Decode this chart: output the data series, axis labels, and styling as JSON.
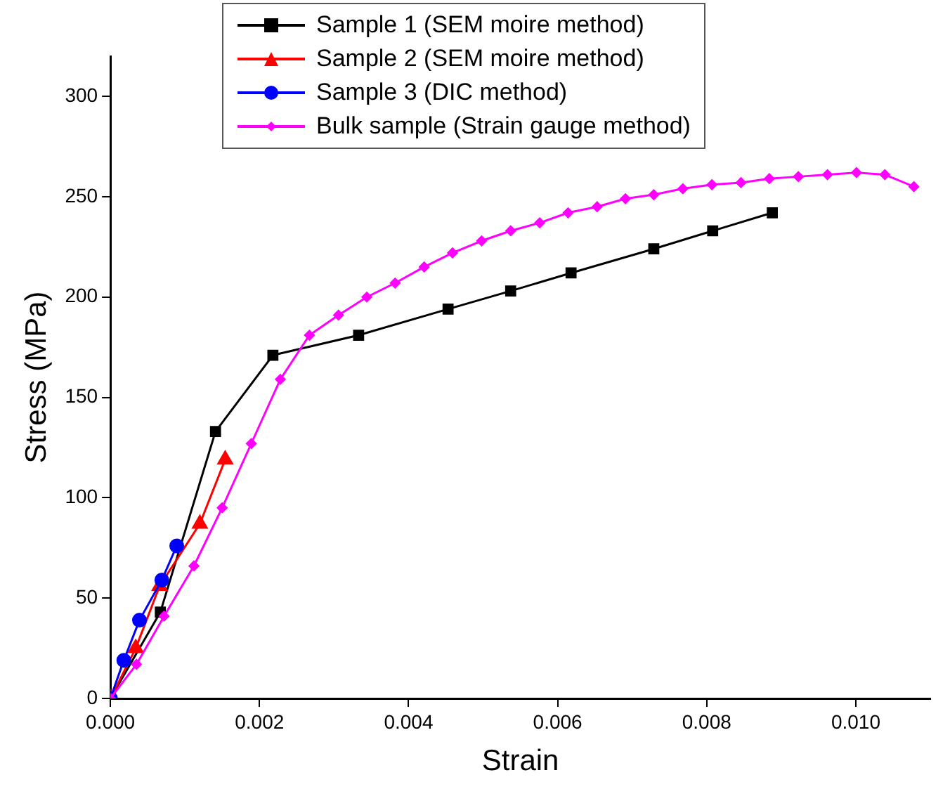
{
  "chart_data": {
    "type": "line",
    "xlabel": "Strain",
    "ylabel": "Stress (MPa)",
    "xlim": [
      0,
      0.011
    ],
    "xticks": [
      {
        "value": 0,
        "label": "0.000"
      },
      {
        "value": 0.002,
        "label": "0.002"
      },
      {
        "value": 0.004,
        "label": "0.004"
      },
      {
        "value": 0.006,
        "label": "0.006"
      },
      {
        "value": 0.008,
        "label": "0.008"
      },
      {
        "value": 0.01,
        "label": "0.010"
      }
    ],
    "ylim": [
      0,
      320
    ],
    "yticks": [
      0,
      50,
      100,
      150,
      200,
      250,
      300
    ],
    "grid": false,
    "legend": "top",
    "line_style": "solid",
    "series": [
      {
        "name": "Sample 1 (SEM moire method)",
        "color": "#000000",
        "marker": "square",
        "x": [
          0,
          0.00067,
          0.00141,
          0.00218,
          0.00333,
          0.00453,
          0.00537,
          0.00618,
          0.00729,
          0.00808,
          0.00888
        ],
        "values": [
          0,
          43,
          133,
          171,
          181,
          194,
          203,
          212,
          224,
          233,
          242
        ]
      },
      {
        "name": "Sample 2 (SEM moire method)",
        "color": "#ff0000",
        "marker": "triangle",
        "x": [
          0,
          0.00034,
          0.00066,
          0.0012,
          0.00154
        ],
        "values": [
          0,
          25,
          56,
          87,
          119
        ]
      },
      {
        "name": "Sample 3 (DIC method)",
        "color": "#0000ff",
        "marker": "circle",
        "x": [
          0,
          0.00018,
          0.00039,
          0.00069,
          0.00089
        ],
        "values": [
          0,
          19,
          39,
          59,
          76
        ]
      },
      {
        "name": "Bulk sample (Strain gauge method)",
        "color": "#ff00ff",
        "marker": "diamond",
        "x": [
          0,
          0.00035,
          0.00072,
          0.00112,
          0.0015,
          0.00189,
          0.00228,
          0.00267,
          0.00306,
          0.00344,
          0.00382,
          0.00421,
          0.00459,
          0.00498,
          0.00537,
          0.00576,
          0.00614,
          0.00653,
          0.00691,
          0.00729,
          0.00768,
          0.00807,
          0.00846,
          0.00884,
          0.00923,
          0.00962,
          0.01001,
          0.01039,
          0.01078
        ],
        "values": [
          0,
          17,
          41,
          66,
          95,
          127,
          159,
          181,
          191,
          200,
          207,
          215,
          222,
          228,
          233,
          237,
          242,
          245,
          249,
          251,
          254,
          256,
          257,
          259,
          260,
          261,
          262,
          261,
          255
        ]
      }
    ]
  }
}
